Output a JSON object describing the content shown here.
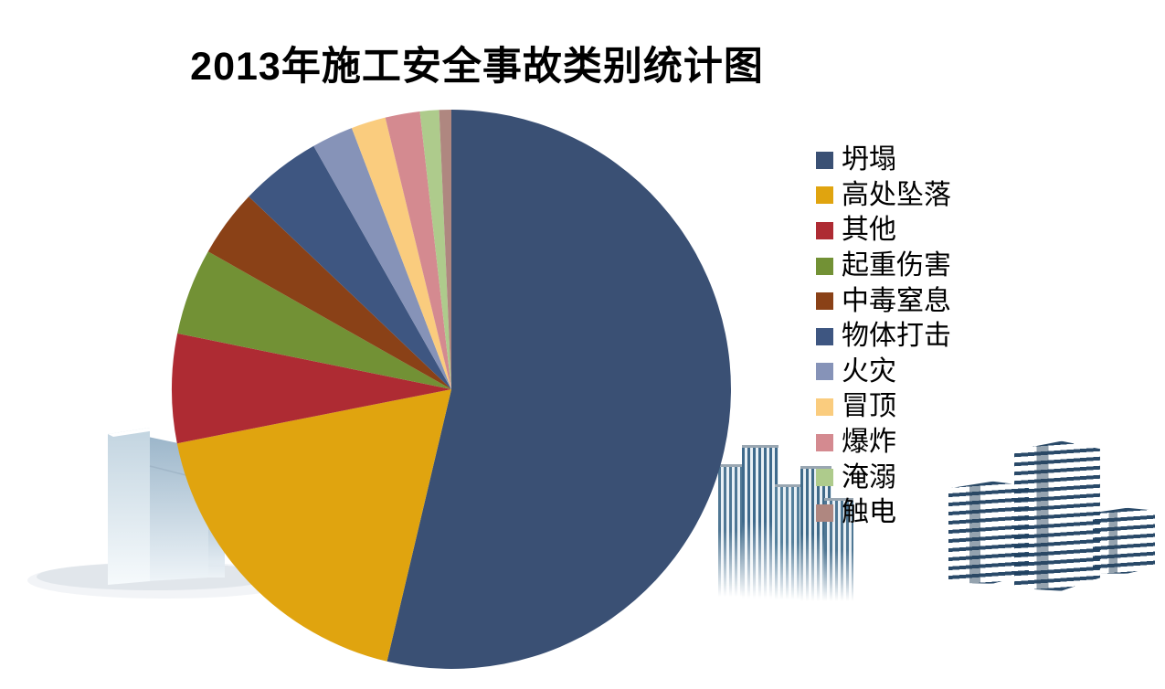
{
  "page": {
    "background": "#ffffff"
  },
  "chart_data": {
    "type": "pie",
    "title": "2013年施工安全事故类别统计图",
    "categories": [
      "坍塌",
      "高处坠落",
      "其他",
      "起重伤害",
      "中毒窒息",
      "物体打击",
      "火灾",
      "冒顶",
      "爆炸",
      "淹溺",
      "触电"
    ],
    "values_pct": [
      53.7,
      18.2,
      6.3,
      5.0,
      3.9,
      4.7,
      2.4,
      2.0,
      2.0,
      1.1,
      0.7
    ],
    "colors": [
      "#3a5074",
      "#e0a40f",
      "#ae2b33",
      "#729135",
      "#8a4117",
      "#3e5681",
      "#8693b8",
      "#facc7e",
      "#d48a90",
      "#aecb8c",
      "#af8780"
    ],
    "start_angle_deg": 0,
    "direction": "clockwise",
    "legend_position": "right",
    "data_labels": false,
    "text_color": "#000000"
  },
  "decor": {
    "glass_tower_top": "#9cb6ca",
    "glass_tower_bottom": "#f4f8fa",
    "striped_tower_blue": "#3f6a8c",
    "plate_tower_navy": "#1f4161",
    "ground_shadow": "#dbe1e7"
  }
}
